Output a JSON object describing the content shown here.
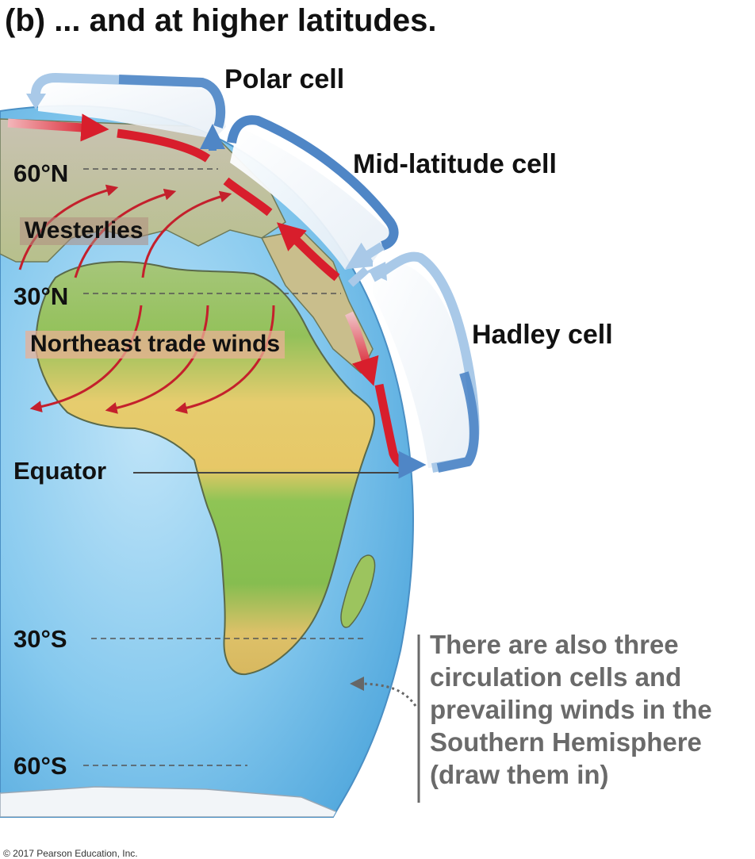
{
  "title": "(b) ... and at higher latitudes.",
  "cells": {
    "polar": "Polar cell",
    "mid_latitude": "Mid-latitude cell",
    "hadley": "Hadley cell"
  },
  "latitudes": {
    "n60": "60°N",
    "n30": "30°N",
    "equator": "Equator",
    "s30": "30°S",
    "s60": "60°S"
  },
  "winds": {
    "westerlies": "Westerlies",
    "northeast_trades": "Northeast trade winds"
  },
  "note": "There are also three circulation cells and prevailing winds in the Southern Hemisphere (draw them in)",
  "copyright": "© 2017 Pearson Education, Inc.",
  "colors": {
    "ocean": "#7cc4ec",
    "land_green": "#8fc45a",
    "land_desert": "#e2c86a",
    "warm_air_arrow": "#d81e2c",
    "cool_air_arrow": "#4f86c6",
    "note_text": "#6a6a6a"
  }
}
